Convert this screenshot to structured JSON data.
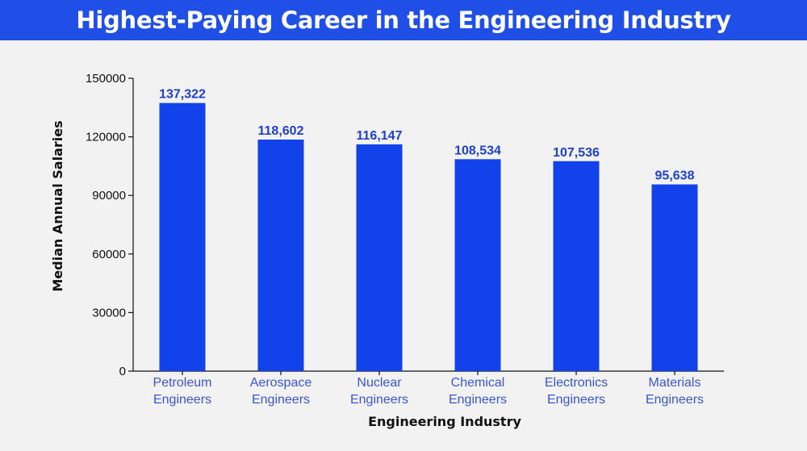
{
  "header": {
    "title": "Highest-Paying Career in the Engineering Industry"
  },
  "colors": {
    "banner": "#1f4fe6",
    "bar": "#1242ea",
    "value_label": "#1f3fcf",
    "category_label": "#3a55d6",
    "background": "#f2f2f2"
  },
  "chart_data": {
    "type": "bar",
    "title": "Highest-Paying Career in the Engineering Industry",
    "xlabel": "Engineering Industry",
    "ylabel": "Median Annual Salaries",
    "categories": [
      [
        "Petroleum",
        "Engineers"
      ],
      [
        "Aerospace",
        "Engineers"
      ],
      [
        "Nuclear",
        "Engineers"
      ],
      [
        "Chemical",
        "Engineers"
      ],
      [
        "Electronics",
        "Engineers"
      ],
      [
        "Materials",
        "Engineers"
      ]
    ],
    "values": [
      137322,
      118602,
      116147,
      108534,
      107536,
      95638
    ],
    "value_labels": [
      "137,322",
      "118,602",
      "116,147",
      "108,534",
      "107,536",
      "95,638"
    ],
    "ylim": [
      0,
      150000
    ],
    "yticks": [
      "0",
      "30000",
      "60000",
      "90000",
      "120000",
      "150000"
    ],
    "grid": false,
    "legend": "none"
  }
}
